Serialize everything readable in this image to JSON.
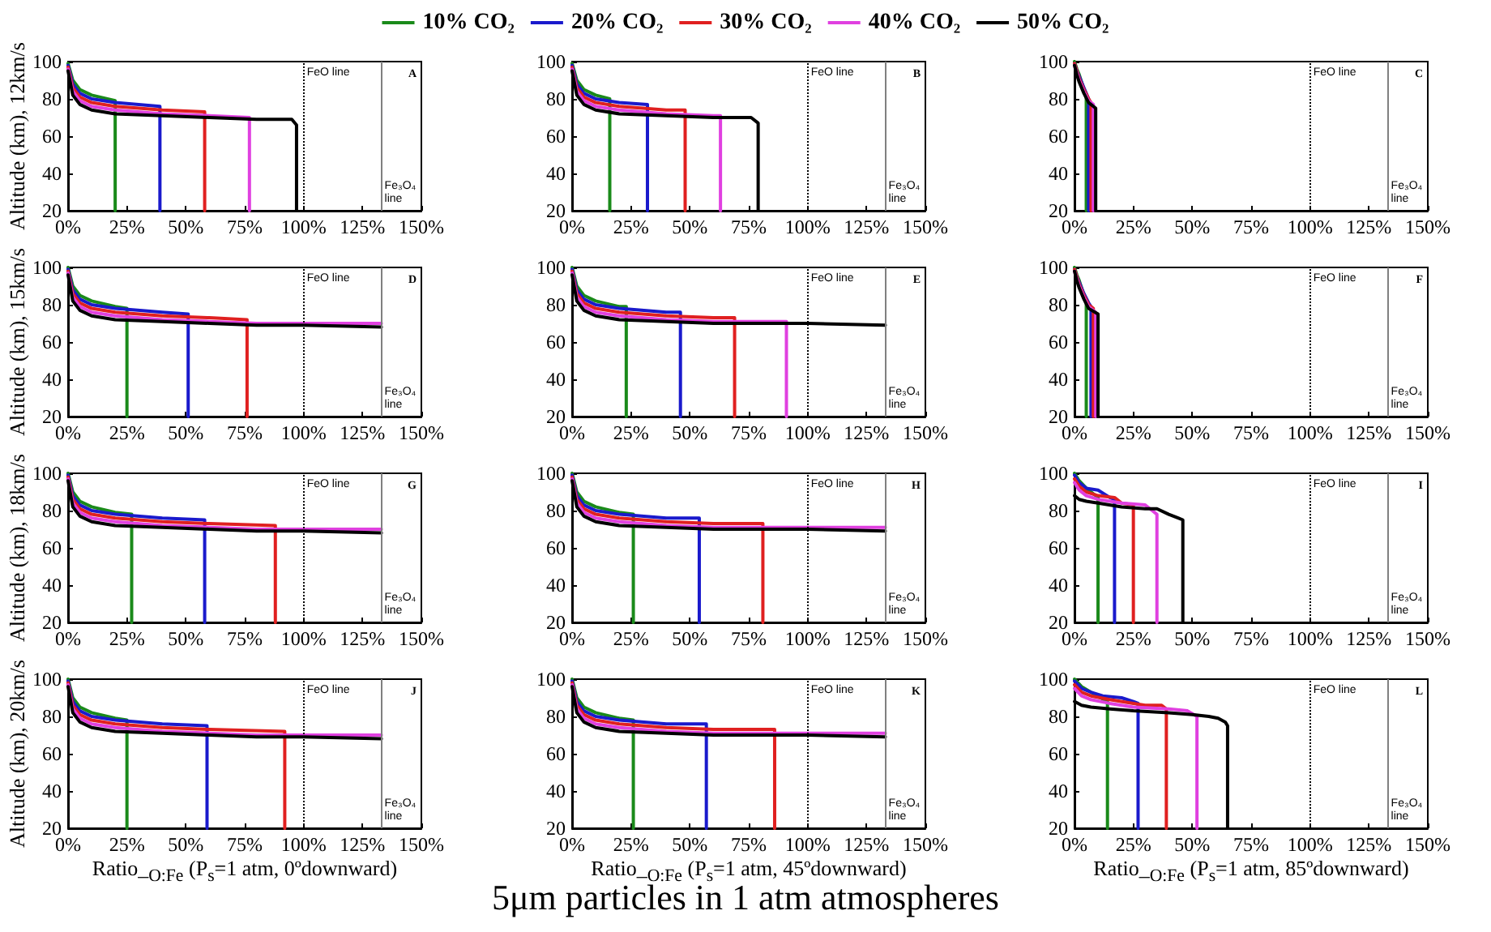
{
  "chart_data": [
    {
      "type": "line",
      "ylabel": "Altitude (km), 12km/s",
      "legend": "top",
      "xlim": [
        0,
        150
      ],
      "ylim": [
        20,
        100
      ],
      "xticks": [
        {
          "value": 0,
          "label": "0%"
        },
        {
          "value": 25,
          "label": "25%"
        },
        {
          "value": 50,
          "label": "50%"
        },
        {
          "value": 75,
          "label": "75%"
        },
        {
          "value": 100,
          "label": "100%"
        },
        {
          "value": 125,
          "label": "125%"
        },
        {
          "value": 150,
          "label": "150%"
        }
      ],
      "yticks": [
        20,
        40,
        60,
        80,
        100
      ],
      "ref_lines": [
        {
          "axis": "x",
          "value": 100,
          "label": "FeO line",
          "color": "#000000",
          "line_style": "dotted"
        },
        {
          "axis": "x",
          "value": 133,
          "label": "Fe₃O₄ line",
          "color": "#808080",
          "line_style": "solid"
        }
      ],
      "annotations": [
        "A"
      ],
      "series": [
        {
          "name": "10% CO₂",
          "color": "#1a8a1a",
          "x": [
            0,
            2,
            5,
            10,
            20,
            20
          ],
          "values": [
            99,
            90,
            85,
            82,
            79,
            20
          ]
        },
        {
          "name": "20% CO₂",
          "color": "#1a1acc",
          "x": [
            0,
            2,
            5,
            10,
            20,
            39,
            39
          ],
          "values": [
            98,
            88,
            83,
            80,
            78,
            76,
            20
          ]
        },
        {
          "name": "30% CO₂",
          "color": "#e02020",
          "x": [
            0,
            2,
            5,
            10,
            20,
            40,
            58,
            58
          ],
          "values": [
            97,
            86,
            81,
            78,
            76,
            74,
            73,
            20
          ]
        },
        {
          "name": "40% CO₂",
          "color": "#e040e0",
          "x": [
            0,
            2,
            5,
            10,
            20,
            40,
            60,
            77,
            77
          ],
          "values": [
            96,
            84,
            79,
            76,
            74,
            72,
            71,
            70,
            20
          ]
        },
        {
          "name": "50% CO₂",
          "color": "#000000",
          "x": [
            0,
            2,
            5,
            10,
            20,
            40,
            60,
            80,
            95,
            97,
            97
          ],
          "values": [
            95,
            82,
            77,
            74,
            72,
            71,
            70,
            69,
            69,
            66,
            20
          ]
        }
      ]
    },
    {
      "type": "line",
      "xlim": [
        0,
        150
      ],
      "ylim": [
        20,
        100
      ],
      "xticks": [
        {
          "value": 0,
          "label": "0%"
        },
        {
          "value": 25,
          "label": "25%"
        },
        {
          "value": 50,
          "label": "50%"
        },
        {
          "value": 75,
          "label": "75%"
        },
        {
          "value": 100,
          "label": "100%"
        },
        {
          "value": 125,
          "label": "125%"
        },
        {
          "value": 150,
          "label": "150%"
        }
      ],
      "yticks": [
        20,
        40,
        60,
        80,
        100
      ],
      "ref_lines": [
        {
          "axis": "x",
          "value": 100,
          "label": "FeO line",
          "color": "#000000",
          "line_style": "dotted"
        },
        {
          "axis": "x",
          "value": 133,
          "label": "Fe₃O₄ line",
          "color": "#808080",
          "line_style": "solid"
        }
      ],
      "annotations": [
        "B"
      ],
      "series": [
        {
          "color": "#1a8a1a",
          "x": [
            0,
            2,
            5,
            10,
            16,
            16
          ],
          "values": [
            99,
            90,
            85,
            82,
            80,
            20
          ]
        },
        {
          "color": "#1a1acc",
          "x": [
            0,
            2,
            5,
            10,
            20,
            32,
            32
          ],
          "values": [
            98,
            88,
            83,
            80,
            78,
            77,
            20
          ]
        },
        {
          "color": "#e02020",
          "x": [
            0,
            2,
            5,
            10,
            20,
            40,
            48,
            48
          ],
          "values": [
            97,
            86,
            81,
            78,
            76,
            74,
            74,
            20
          ]
        },
        {
          "color": "#e040e0",
          "x": [
            0,
            2,
            5,
            10,
            20,
            40,
            60,
            63,
            63
          ],
          "values": [
            96,
            84,
            79,
            76,
            74,
            72,
            71,
            71,
            20
          ]
        },
        {
          "color": "#000000",
          "x": [
            0,
            2,
            5,
            10,
            20,
            40,
            60,
            76,
            79,
            79
          ],
          "values": [
            95,
            82,
            77,
            74,
            72,
            71,
            70,
            70,
            67,
            20
          ]
        }
      ]
    },
    {
      "type": "line",
      "xlim": [
        0,
        150
      ],
      "ylim": [
        20,
        100
      ],
      "xticks": [
        {
          "value": 0,
          "label": "0%"
        },
        {
          "value": 25,
          "label": "25%"
        },
        {
          "value": 50,
          "label": "50%"
        },
        {
          "value": 75,
          "label": "75%"
        },
        {
          "value": 100,
          "label": "100%"
        },
        {
          "value": 125,
          "label": "125%"
        },
        {
          "value": 150,
          "label": "150%"
        }
      ],
      "yticks": [
        20,
        40,
        60,
        80,
        100
      ],
      "ref_lines": [
        {
          "axis": "x",
          "value": 100,
          "label": "FeO line",
          "color": "#000000",
          "line_style": "dotted"
        },
        {
          "axis": "x",
          "value": 133,
          "label": "Fe₃O₄ line",
          "color": "#808080",
          "line_style": "solid"
        }
      ],
      "annotations": [
        "C"
      ],
      "series": [
        {
          "color": "#1a8a1a",
          "x": [
            0,
            1,
            2,
            3,
            4,
            5,
            5
          ],
          "values": [
            100,
            96,
            93,
            89,
            85,
            81,
            20
          ]
        },
        {
          "color": "#1a1acc",
          "x": [
            0,
            1,
            2,
            4,
            6,
            6
          ],
          "values": [
            99,
            95,
            92,
            86,
            80,
            20
          ]
        },
        {
          "color": "#e02020",
          "x": [
            0,
            1,
            2,
            4,
            6,
            7,
            7
          ],
          "values": [
            99,
            95,
            91,
            85,
            80,
            78,
            20
          ]
        },
        {
          "color": "#e040e0",
          "x": [
            0,
            1,
            2,
            4,
            6,
            8,
            8
          ],
          "values": [
            98,
            94,
            90,
            84,
            79,
            77,
            20
          ]
        },
        {
          "color": "#000000",
          "x": [
            0,
            1,
            2,
            4,
            6,
            9,
            9
          ],
          "values": [
            98,
            93,
            89,
            83,
            78,
            75,
            20
          ]
        }
      ]
    },
    {
      "type": "line",
      "ylabel": "Altitude (km), 15km/s",
      "xlim": [
        0,
        150
      ],
      "ylim": [
        20,
        100
      ],
      "xticks": [
        {
          "value": 0,
          "label": "0%"
        },
        {
          "value": 25,
          "label": "25%"
        },
        {
          "value": 50,
          "label": "50%"
        },
        {
          "value": 75,
          "label": "75%"
        },
        {
          "value": 100,
          "label": "100%"
        },
        {
          "value": 125,
          "label": "125%"
        },
        {
          "value": 150,
          "label": "150%"
        }
      ],
      "yticks": [
        20,
        40,
        60,
        80,
        100
      ],
      "ref_lines": [
        {
          "axis": "x",
          "value": 100,
          "label": "FeO line",
          "color": "#000000",
          "line_style": "dotted"
        },
        {
          "axis": "x",
          "value": 133,
          "label": "Fe₃O₄ line",
          "color": "#808080",
          "line_style": "solid"
        }
      ],
      "annotations": [
        "D"
      ],
      "series": [
        {
          "color": "#1a8a1a",
          "x": [
            0,
            2,
            5,
            10,
            20,
            25,
            25
          ],
          "values": [
            100,
            90,
            85,
            82,
            79,
            78,
            20
          ]
        },
        {
          "color": "#1a1acc",
          "x": [
            0,
            2,
            5,
            10,
            20,
            40,
            51,
            51
          ],
          "values": [
            99,
            88,
            83,
            80,
            78,
            76,
            75,
            20
          ]
        },
        {
          "color": "#e02020",
          "x": [
            0,
            2,
            5,
            10,
            20,
            40,
            60,
            76,
            76
          ],
          "values": [
            98,
            86,
            81,
            78,
            76,
            74,
            73,
            72,
            20
          ]
        },
        {
          "color": "#e040e0",
          "x": [
            0,
            2,
            5,
            10,
            20,
            40,
            60,
            80,
            100,
            133
          ],
          "values": [
            97,
            84,
            79,
            76,
            74,
            72,
            71,
            70,
            70,
            70
          ]
        },
        {
          "color": "#000000",
          "x": [
            0,
            2,
            5,
            10,
            20,
            40,
            60,
            80,
            100,
            133
          ],
          "values": [
            96,
            82,
            77,
            74,
            72,
            71,
            70,
            69,
            69,
            68
          ]
        }
      ]
    },
    {
      "type": "line",
      "xlim": [
        0,
        150
      ],
      "ylim": [
        20,
        100
      ],
      "xticks": [
        {
          "value": 0,
          "label": "0%"
        },
        {
          "value": 25,
          "label": "25%"
        },
        {
          "value": 50,
          "label": "50%"
        },
        {
          "value": 75,
          "label": "75%"
        },
        {
          "value": 100,
          "label": "100%"
        },
        {
          "value": 125,
          "label": "125%"
        },
        {
          "value": 150,
          "label": "150%"
        }
      ],
      "yticks": [
        20,
        40,
        60,
        80,
        100
      ],
      "ref_lines": [
        {
          "axis": "x",
          "value": 100,
          "label": "FeO line",
          "color": "#000000",
          "line_style": "dotted"
        },
        {
          "axis": "x",
          "value": 133,
          "label": "Fe₃O₄ line",
          "color": "#808080",
          "line_style": "solid"
        }
      ],
      "annotations": [
        "E"
      ],
      "series": [
        {
          "color": "#1a8a1a",
          "x": [
            0,
            2,
            5,
            10,
            20,
            23,
            23
          ],
          "values": [
            100,
            90,
            85,
            82,
            79,
            79,
            20
          ]
        },
        {
          "color": "#1a1acc",
          "x": [
            0,
            2,
            5,
            10,
            20,
            40,
            46,
            46
          ],
          "values": [
            99,
            88,
            83,
            80,
            78,
            76,
            76,
            20
          ]
        },
        {
          "color": "#e02020",
          "x": [
            0,
            2,
            5,
            10,
            20,
            40,
            60,
            69,
            69
          ],
          "values": [
            98,
            86,
            81,
            78,
            76,
            74,
            73,
            73,
            20
          ]
        },
        {
          "color": "#e040e0",
          "x": [
            0,
            2,
            5,
            10,
            20,
            40,
            60,
            80,
            91,
            91
          ],
          "values": [
            97,
            84,
            79,
            76,
            74,
            72,
            71,
            71,
            71,
            20
          ]
        },
        {
          "color": "#000000",
          "x": [
            0,
            2,
            5,
            10,
            20,
            40,
            60,
            80,
            100,
            133
          ],
          "values": [
            96,
            82,
            77,
            74,
            72,
            71,
            70,
            70,
            70,
            69
          ]
        }
      ]
    },
    {
      "type": "line",
      "xlim": [
        0,
        150
      ],
      "ylim": [
        20,
        100
      ],
      "xticks": [
        {
          "value": 0,
          "label": "0%"
        },
        {
          "value": 25,
          "label": "25%"
        },
        {
          "value": 50,
          "label": "50%"
        },
        {
          "value": 75,
          "label": "75%"
        },
        {
          "value": 100,
          "label": "100%"
        },
        {
          "value": 125,
          "label": "125%"
        },
        {
          "value": 150,
          "label": "150%"
        }
      ],
      "yticks": [
        20,
        40,
        60,
        80,
        100
      ],
      "ref_lines": [
        {
          "axis": "x",
          "value": 100,
          "label": "FeO line",
          "color": "#000000",
          "line_style": "dotted"
        },
        {
          "axis": "x",
          "value": 133,
          "label": "Fe₃O₄ line",
          "color": "#808080",
          "line_style": "solid"
        }
      ],
      "annotations": [
        "F"
      ],
      "series": [
        {
          "color": "#1a8a1a",
          "x": [
            0,
            1,
            2,
            3,
            4,
            5,
            5
          ],
          "values": [
            100,
            96,
            93,
            89,
            85,
            81,
            20
          ]
        },
        {
          "color": "#1a1acc",
          "x": [
            0,
            1,
            2,
            4,
            6,
            7,
            7
          ],
          "values": [
            99,
            95,
            92,
            86,
            81,
            79,
            20
          ]
        },
        {
          "color": "#e02020",
          "x": [
            0,
            1,
            2,
            4,
            6,
            8,
            8
          ],
          "values": [
            99,
            95,
            91,
            85,
            80,
            78,
            20
          ]
        },
        {
          "color": "#e040e0",
          "x": [
            0,
            1,
            2,
            4,
            6,
            9,
            9
          ],
          "values": [
            98,
            94,
            90,
            84,
            79,
            76,
            20
          ]
        },
        {
          "color": "#000000",
          "x": [
            0,
            1,
            2,
            4,
            6,
            10,
            10
          ],
          "values": [
            98,
            93,
            89,
            83,
            78,
            75,
            20
          ]
        }
      ]
    },
    {
      "type": "line",
      "ylabel": "Altitude (km), 18km/s",
      "xlim": [
        0,
        150
      ],
      "ylim": [
        20,
        100
      ],
      "xticks": [
        {
          "value": 0,
          "label": "0%"
        },
        {
          "value": 25,
          "label": "25%"
        },
        {
          "value": 50,
          "label": "50%"
        },
        {
          "value": 75,
          "label": "75%"
        },
        {
          "value": 100,
          "label": "100%"
        },
        {
          "value": 125,
          "label": "125%"
        },
        {
          "value": 150,
          "label": "150%"
        }
      ],
      "yticks": [
        20,
        40,
        60,
        80,
        100
      ],
      "ref_lines": [
        {
          "axis": "x",
          "value": 100,
          "label": "FeO line",
          "color": "#000000",
          "line_style": "dotted"
        },
        {
          "axis": "x",
          "value": 133,
          "label": "Fe₃O₄ line",
          "color": "#808080",
          "line_style": "solid"
        }
      ],
      "annotations": [
        "G"
      ],
      "series": [
        {
          "color": "#1a8a1a",
          "x": [
            0,
            2,
            5,
            10,
            20,
            27,
            27
          ],
          "values": [
            100,
            90,
            85,
            82,
            79,
            78,
            20
          ]
        },
        {
          "color": "#1a1acc",
          "x": [
            0,
            2,
            5,
            10,
            20,
            40,
            58,
            58
          ],
          "values": [
            99,
            88,
            83,
            80,
            78,
            76,
            75,
            20
          ]
        },
        {
          "color": "#e02020",
          "x": [
            0,
            2,
            5,
            10,
            20,
            40,
            60,
            88,
            88
          ],
          "values": [
            98,
            86,
            81,
            78,
            76,
            74,
            73,
            72,
            20
          ]
        },
        {
          "color": "#e040e0",
          "x": [
            0,
            2,
            5,
            10,
            20,
            40,
            60,
            80,
            100,
            133
          ],
          "values": [
            97,
            84,
            79,
            76,
            74,
            72,
            71,
            70,
            70,
            70
          ]
        },
        {
          "color": "#000000",
          "x": [
            0,
            2,
            5,
            10,
            20,
            40,
            60,
            80,
            100,
            133
          ],
          "values": [
            96,
            82,
            77,
            74,
            72,
            71,
            70,
            69,
            69,
            68
          ]
        }
      ]
    },
    {
      "type": "line",
      "xlim": [
        0,
        150
      ],
      "ylim": [
        20,
        100
      ],
      "xticks": [
        {
          "value": 0,
          "label": "0%"
        },
        {
          "value": 25,
          "label": "25%"
        },
        {
          "value": 50,
          "label": "50%"
        },
        {
          "value": 75,
          "label": "75%"
        },
        {
          "value": 100,
          "label": "100%"
        },
        {
          "value": 125,
          "label": "125%"
        },
        {
          "value": 150,
          "label": "150%"
        }
      ],
      "yticks": [
        20,
        40,
        60,
        80,
        100
      ],
      "ref_lines": [
        {
          "axis": "x",
          "value": 100,
          "label": "FeO line",
          "color": "#000000",
          "line_style": "dotted"
        },
        {
          "axis": "x",
          "value": 133,
          "label": "Fe₃O₄ line",
          "color": "#808080",
          "line_style": "solid"
        }
      ],
      "annotations": [
        "H"
      ],
      "series": [
        {
          "color": "#1a8a1a",
          "x": [
            0,
            2,
            5,
            10,
            20,
            26,
            26
          ],
          "values": [
            100,
            90,
            85,
            82,
            79,
            78,
            20
          ]
        },
        {
          "color": "#1a1acc",
          "x": [
            0,
            2,
            5,
            10,
            20,
            40,
            54,
            54
          ],
          "values": [
            99,
            88,
            83,
            80,
            78,
            76,
            76,
            20
          ]
        },
        {
          "color": "#e02020",
          "x": [
            0,
            2,
            5,
            10,
            20,
            40,
            60,
            81,
            81
          ],
          "values": [
            98,
            86,
            81,
            78,
            76,
            74,
            73,
            73,
            20
          ]
        },
        {
          "color": "#e040e0",
          "x": [
            0,
            2,
            5,
            10,
            20,
            40,
            60,
            80,
            100,
            133
          ],
          "values": [
            97,
            84,
            79,
            76,
            74,
            72,
            71,
            71,
            71,
            71
          ]
        },
        {
          "color": "#000000",
          "x": [
            0,
            2,
            5,
            10,
            20,
            40,
            60,
            80,
            100,
            133
          ],
          "values": [
            96,
            82,
            77,
            74,
            72,
            71,
            70,
            70,
            70,
            69
          ]
        }
      ]
    },
    {
      "type": "line",
      "xlim": [
        0,
        150
      ],
      "ylim": [
        20,
        100
      ],
      "xticks": [
        {
          "value": 0,
          "label": "0%"
        },
        {
          "value": 25,
          "label": "25%"
        },
        {
          "value": 50,
          "label": "50%"
        },
        {
          "value": 75,
          "label": "75%"
        },
        {
          "value": 100,
          "label": "100%"
        },
        {
          "value": 125,
          "label": "125%"
        },
        {
          "value": 150,
          "label": "150%"
        }
      ],
      "yticks": [
        20,
        40,
        60,
        80,
        100
      ],
      "ref_lines": [
        {
          "axis": "x",
          "value": 100,
          "label": "FeO line",
          "color": "#000000",
          "line_style": "dotted"
        },
        {
          "axis": "x",
          "value": 133,
          "label": "Fe₃O₄ line",
          "color": "#808080",
          "line_style": "solid"
        }
      ],
      "annotations": [
        "I"
      ],
      "series": [
        {
          "color": "#1a8a1a",
          "x": [
            0,
            2,
            5,
            8,
            10,
            10
          ],
          "values": [
            100,
            96,
            92,
            89,
            87,
            20
          ]
        },
        {
          "color": "#1a1acc",
          "x": [
            0,
            2,
            5,
            10,
            15,
            17,
            17
          ],
          "values": [
            99,
            95,
            92,
            91,
            87,
            86,
            20
          ]
        },
        {
          "color": "#e02020",
          "x": [
            0,
            2,
            5,
            10,
            17,
            20,
            25,
            25
          ],
          "values": [
            97,
            93,
            90,
            88,
            87,
            84,
            83,
            20
          ]
        },
        {
          "color": "#e040e0",
          "x": [
            0,
            2,
            5,
            10,
            20,
            30,
            33,
            35,
            35
          ],
          "values": [
            95,
            91,
            88,
            86,
            84,
            83,
            80,
            78,
            20
          ]
        },
        {
          "color": "#000000",
          "x": [
            0,
            2,
            5,
            10,
            20,
            30,
            35,
            40,
            44,
            46,
            46
          ],
          "values": [
            88,
            86,
            85,
            84,
            82,
            81,
            81,
            78,
            76,
            75,
            20
          ]
        }
      ]
    },
    {
      "type": "line",
      "ylabel": "Altitude (km), 20km/s",
      "xlabel": "Ratio_$_{O:Fe}$ (P$_{s}$=1 atm, 0ºdownward)",
      "xlim": [
        0,
        150
      ],
      "ylim": [
        20,
        100
      ],
      "xticks": [
        {
          "value": 0,
          "label": "0%"
        },
        {
          "value": 25,
          "label": "25%"
        },
        {
          "value": 50,
          "label": "50%"
        },
        {
          "value": 75,
          "label": "75%"
        },
        {
          "value": 100,
          "label": "100%"
        },
        {
          "value": 125,
          "label": "125%"
        },
        {
          "value": 150,
          "label": "150%"
        }
      ],
      "yticks": [
        20,
        40,
        60,
        80,
        100
      ],
      "ref_lines": [
        {
          "axis": "x",
          "value": 100,
          "label": "FeO line",
          "color": "#000000",
          "line_style": "dotted"
        },
        {
          "axis": "x",
          "value": 133,
          "label": "Fe₃O₄ line",
          "color": "#808080",
          "line_style": "solid"
        }
      ],
      "annotations": [
        "J"
      ],
      "series": [
        {
          "color": "#1a8a1a",
          "x": [
            0,
            2,
            5,
            10,
            20,
            25,
            25
          ],
          "values": [
            100,
            90,
            85,
            82,
            79,
            78,
            20
          ]
        },
        {
          "color": "#1a1acc",
          "x": [
            0,
            2,
            5,
            10,
            20,
            40,
            59,
            59
          ],
          "values": [
            99,
            88,
            83,
            80,
            78,
            76,
            75,
            20
          ]
        },
        {
          "color": "#e02020",
          "x": [
            0,
            2,
            5,
            10,
            20,
            40,
            60,
            92,
            92
          ],
          "values": [
            98,
            86,
            81,
            78,
            76,
            74,
            73,
            72,
            20
          ]
        },
        {
          "color": "#e040e0",
          "x": [
            0,
            2,
            5,
            10,
            20,
            40,
            60,
            80,
            100,
            133
          ],
          "values": [
            97,
            84,
            79,
            76,
            74,
            72,
            71,
            70,
            70,
            70
          ]
        },
        {
          "color": "#000000",
          "x": [
            0,
            2,
            5,
            10,
            20,
            40,
            60,
            80,
            100,
            133
          ],
          "values": [
            96,
            82,
            77,
            74,
            72,
            71,
            70,
            69,
            69,
            68
          ]
        }
      ]
    },
    {
      "type": "line",
      "xlabel": "Ratio_$_{O:Fe}$ (P$_{s}$=1 atm, 45ºdownward)",
      "xlim": [
        0,
        150
      ],
      "ylim": [
        20,
        100
      ],
      "xticks": [
        {
          "value": 0,
          "label": "0%"
        },
        {
          "value": 25,
          "label": "25%"
        },
        {
          "value": 50,
          "label": "50%"
        },
        {
          "value": 75,
          "label": "75%"
        },
        {
          "value": 100,
          "label": "100%"
        },
        {
          "value": 125,
          "label": "125%"
        },
        {
          "value": 150,
          "label": "150%"
        }
      ],
      "yticks": [
        20,
        40,
        60,
        80,
        100
      ],
      "ref_lines": [
        {
          "axis": "x",
          "value": 100,
          "label": "FeO line",
          "color": "#000000",
          "line_style": "dotted"
        },
        {
          "axis": "x",
          "value": 133,
          "label": "Fe₃O₄ line",
          "color": "#808080",
          "line_style": "solid"
        }
      ],
      "annotations": [
        "K",
        "5μm particles in 1 atm atmospheres"
      ],
      "series": [
        {
          "color": "#1a8a1a",
          "x": [
            0,
            2,
            5,
            10,
            20,
            26,
            26
          ],
          "values": [
            100,
            90,
            85,
            82,
            79,
            78,
            20
          ]
        },
        {
          "color": "#1a1acc",
          "x": [
            0,
            2,
            5,
            10,
            20,
            40,
            57,
            57
          ],
          "values": [
            99,
            88,
            83,
            80,
            78,
            76,
            76,
            20
          ]
        },
        {
          "color": "#e02020",
          "x": [
            0,
            2,
            5,
            10,
            20,
            40,
            60,
            86,
            86
          ],
          "values": [
            98,
            86,
            81,
            78,
            76,
            74,
            73,
            73,
            20
          ]
        },
        {
          "color": "#e040e0",
          "x": [
            0,
            2,
            5,
            10,
            20,
            40,
            60,
            80,
            100,
            133
          ],
          "values": [
            97,
            84,
            79,
            76,
            74,
            72,
            71,
            71,
            71,
            71
          ]
        },
        {
          "color": "#000000",
          "x": [
            0,
            2,
            5,
            10,
            20,
            40,
            60,
            80,
            100,
            133
          ],
          "values": [
            96,
            82,
            77,
            74,
            72,
            71,
            70,
            70,
            70,
            69
          ]
        }
      ]
    },
    {
      "type": "line",
      "xlabel": "Ratio_$_{O:Fe}$ (P$_{s}$=1 atm, 85ºdownward)",
      "xlim": [
        0,
        150
      ],
      "ylim": [
        20,
        100
      ],
      "xticks": [
        {
          "value": 0,
          "label": "0%"
        },
        {
          "value": 25,
          "label": "25%"
        },
        {
          "value": 50,
          "label": "50%"
        },
        {
          "value": 75,
          "label": "75%"
        },
        {
          "value": 100,
          "label": "100%"
        },
        {
          "value": 125,
          "label": "125%"
        },
        {
          "value": 150,
          "label": "150%"
        }
      ],
      "yticks": [
        20,
        40,
        60,
        80,
        100
      ],
      "ref_lines": [
        {
          "axis": "x",
          "value": 100,
          "label": "FeO line",
          "color": "#000000",
          "line_style": "dotted"
        },
        {
          "axis": "x",
          "value": 133,
          "label": "Fe₃O₄ line",
          "color": "#808080",
          "line_style": "solid"
        }
      ],
      "annotations": [
        "L"
      ],
      "series": [
        {
          "color": "#1a8a1a",
          "x": [
            0,
            3,
            7,
            11,
            14,
            14
          ],
          "values": [
            100,
            96,
            93,
            90,
            88,
            20
          ]
        },
        {
          "color": "#1a1acc",
          "x": [
            0,
            3,
            7,
            12,
            20,
            25,
            27,
            27
          ],
          "values": [
            99,
            95,
            93,
            91,
            90,
            88,
            87,
            20
          ]
        },
        {
          "color": "#e02020",
          "x": [
            0,
            3,
            7,
            15,
            25,
            30,
            37,
            39,
            39
          ],
          "values": [
            97,
            93,
            91,
            89,
            87,
            86,
            86,
            84,
            20
          ]
        },
        {
          "color": "#e040e0",
          "x": [
            0,
            3,
            7,
            15,
            25,
            40,
            48,
            52,
            52
          ],
          "values": [
            95,
            91,
            89,
            87,
            85,
            84,
            83,
            80,
            20
          ]
        },
        {
          "color": "#000000",
          "x": [
            0,
            3,
            7,
            15,
            25,
            40,
            50,
            57,
            61,
            64,
            65,
            65
          ],
          "values": [
            88,
            86,
            85,
            84,
            83,
            82,
            81,
            80,
            79,
            77,
            75,
            20
          ]
        }
      ]
    }
  ]
}
